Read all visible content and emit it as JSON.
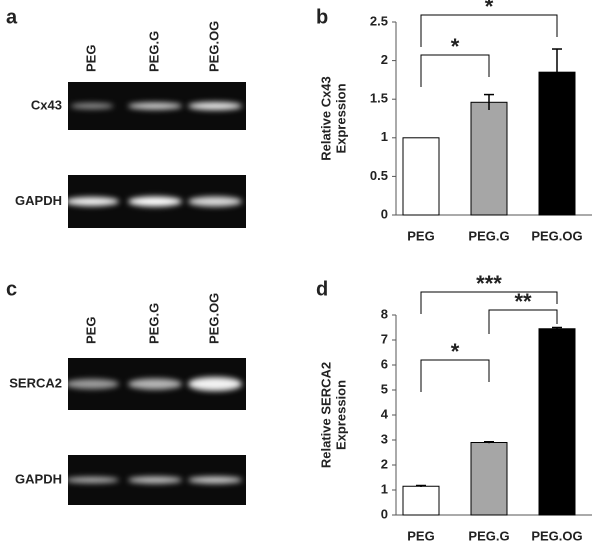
{
  "panels": [
    {
      "letter": "a",
      "lanes": [
        "PEG",
        "PEG.G",
        "PEG.OG"
      ],
      "rows": [
        "Cx43",
        "GAPDH"
      ]
    },
    {
      "letter": "c",
      "lanes": [
        "PEG",
        "PEG.G",
        "PEG.OG"
      ],
      "rows": [
        "SERCA2",
        "GAPDH"
      ]
    }
  ],
  "chart_data": [
    {
      "type": "bar",
      "letter": "b",
      "ylabel": [
        "Relative Cx43",
        "Expression"
      ],
      "categories": [
        "PEG",
        "PEG.G",
        "PEG.OG"
      ],
      "values": [
        1,
        1.46,
        1.85
      ],
      "errors": [
        0,
        0.1,
        0.3
      ],
      "colors": [
        "#ffffff",
        "#a6a6a6",
        "#000000"
      ],
      "ylim": [
        0,
        2.5
      ],
      "yticks": [
        0,
        0.5,
        1,
        1.5,
        2,
        2.5
      ],
      "significance": [
        {
          "label": "*",
          "from": 0,
          "to": 1
        },
        {
          "label": "*",
          "from": 0,
          "to": 2
        }
      ]
    },
    {
      "type": "bar",
      "letter": "d",
      "ylabel": [
        "Relative SERCA2",
        "Expression"
      ],
      "categories": [
        "PEG",
        "PEG.G",
        "PEG.OG"
      ],
      "values": [
        1.15,
        2.9,
        7.45
      ],
      "errors": [
        0.03,
        0.03,
        0.05
      ],
      "colors": [
        "#ffffff",
        "#a6a6a6",
        "#000000"
      ],
      "ylim": [
        0,
        8
      ],
      "yticks": [
        0,
        1,
        2,
        3,
        4,
        5,
        6,
        7,
        8
      ],
      "significance": [
        {
          "label": "*",
          "from": 0,
          "to": 1
        },
        {
          "label": "**",
          "from": 1,
          "to": 2
        },
        {
          "label": "***",
          "from": 0,
          "to": 2
        }
      ]
    }
  ]
}
